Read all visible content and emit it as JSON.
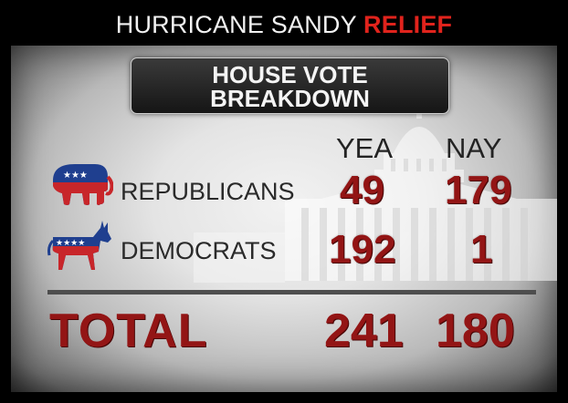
{
  "header": {
    "title_main": "HURRICANE SANDY",
    "title_accent": "RELIEF"
  },
  "titlebox": {
    "line1": "HOUSE VOTE",
    "line2": "BREAKDOWN"
  },
  "columns": {
    "yea": "YEA",
    "nay": "NAY"
  },
  "rows": [
    {
      "label": "REPUBLICANS",
      "yea": "49",
      "nay": "179",
      "icon": "republican-elephant-icon"
    },
    {
      "label": "DEMOCRATS",
      "yea": "192",
      "nay": "1",
      "icon": "democratic-donkey-icon"
    }
  ],
  "total": {
    "label": "TOTAL",
    "yea": "241",
    "nay": "180"
  },
  "colors": {
    "accent_red": "#e0231c",
    "number_red": "#931515",
    "party_blue": "#1f3f8f",
    "party_red": "#c8262a"
  }
}
